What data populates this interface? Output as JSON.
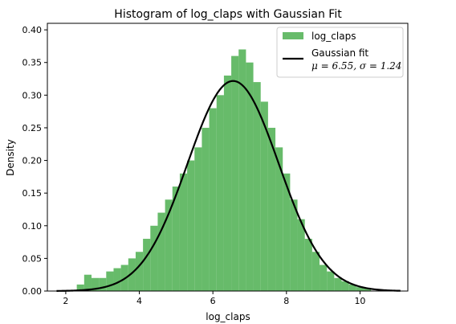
{
  "chart_data": {
    "type": "bar",
    "title": "Histogram of log_claps with Gaussian Fit",
    "xlabel": "log_claps",
    "ylabel": "Density",
    "xlim": [
      1.5,
      11.3
    ],
    "ylim": [
      0,
      0.41
    ],
    "xticks": [
      "2",
      "4",
      "6",
      "8",
      "10"
    ],
    "yticks": [
      "0.00",
      "0.05",
      "0.10",
      "0.15",
      "0.20",
      "0.25",
      "0.30",
      "0.35",
      "0.40"
    ],
    "grid": false,
    "legend_position": "top-right",
    "colors": {
      "histogram": "#4caf50",
      "fit_line": "#000000"
    },
    "histogram": {
      "name": "log_claps",
      "bins": [
        [
          2.4,
          0.01
        ],
        [
          2.6,
          0.025
        ],
        [
          2.8,
          0.02
        ],
        [
          3.0,
          0.02
        ],
        [
          3.2,
          0.03
        ],
        [
          3.4,
          0.035
        ],
        [
          3.6,
          0.04
        ],
        [
          3.8,
          0.05
        ],
        [
          4.0,
          0.06
        ],
        [
          4.2,
          0.08
        ],
        [
          4.4,
          0.1
        ],
        [
          4.6,
          0.12
        ],
        [
          4.8,
          0.14
        ],
        [
          5.0,
          0.16
        ],
        [
          5.2,
          0.18
        ],
        [
          5.4,
          0.2
        ],
        [
          5.6,
          0.22
        ],
        [
          5.8,
          0.25
        ],
        [
          6.0,
          0.28
        ],
        [
          6.2,
          0.3
        ],
        [
          6.4,
          0.33
        ],
        [
          6.6,
          0.36
        ],
        [
          6.8,
          0.37
        ],
        [
          7.0,
          0.35
        ],
        [
          7.2,
          0.32
        ],
        [
          7.4,
          0.29
        ],
        [
          7.6,
          0.25
        ],
        [
          7.8,
          0.22
        ],
        [
          8.0,
          0.18
        ],
        [
          8.2,
          0.14
        ],
        [
          8.4,
          0.11
        ],
        [
          8.6,
          0.08
        ],
        [
          8.8,
          0.06
        ],
        [
          9.0,
          0.04
        ],
        [
          9.2,
          0.03
        ],
        [
          9.4,
          0.02
        ],
        [
          9.6,
          0.015
        ],
        [
          9.8,
          0.01
        ],
        [
          10.0,
          0.006
        ],
        [
          10.2,
          0.004
        ]
      ]
    },
    "gaussian_fit": {
      "name_line1": "Gaussian fit",
      "mu": 6.55,
      "sigma": 1.24,
      "label_math": "μ = 6.55, σ = 1.24",
      "x_range": [
        1.75,
        11.1
      ]
    }
  }
}
